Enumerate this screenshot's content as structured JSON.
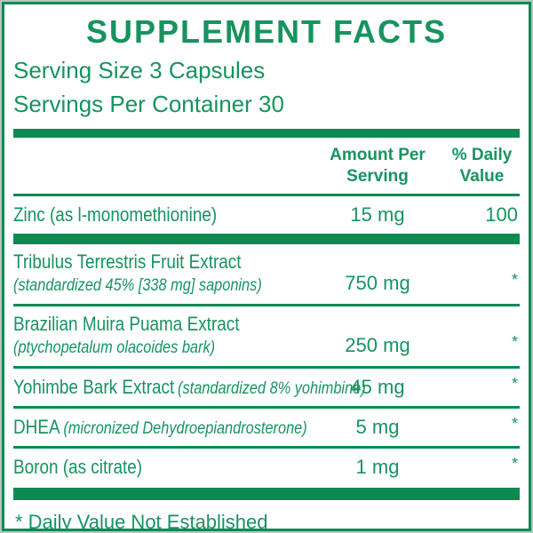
{
  "colors": {
    "green_text": "#17935f",
    "green_bar": "#0d8a52",
    "frame_outline": "#b7c6bd"
  },
  "label": {
    "title": "SUPPLEMENT FACTS",
    "serving_size": "Serving Size 3 Capsules",
    "servings_per_container": "Servings Per Container 30"
  },
  "table": {
    "header": {
      "amount_line1": "Amount Per",
      "amount_line2": "Serving",
      "dv_line1": "% Daily",
      "dv_line2": "Value"
    },
    "rows": [
      {
        "name": "Zinc (as l-monomethionine)",
        "amount": "15 mg",
        "dv": "100"
      },
      {
        "name": "Tribulus Terrestris Fruit Extract",
        "subtext": "(standardized 45% [338 mg] saponins)",
        "amount": "750 mg",
        "dv": "*"
      },
      {
        "name": "Brazilian Muira Puama Extract",
        "subtext": "(ptychopetalum olacoides bark)",
        "amount": "250 mg",
        "dv": "*"
      },
      {
        "name": "Yohimbe Bark Extract",
        "detail": "(standardized 8% yohimbine)",
        "amount": "45 mg",
        "dv": "*"
      },
      {
        "name": "DHEA",
        "detail": "(micronized Dehydroepiandrosterone)",
        "amount": "5 mg",
        "dv": "*"
      },
      {
        "name": "Boron (as citrate)",
        "amount": "1 mg",
        "dv": "*"
      }
    ],
    "footnote": "* Daily Value Not Established"
  }
}
